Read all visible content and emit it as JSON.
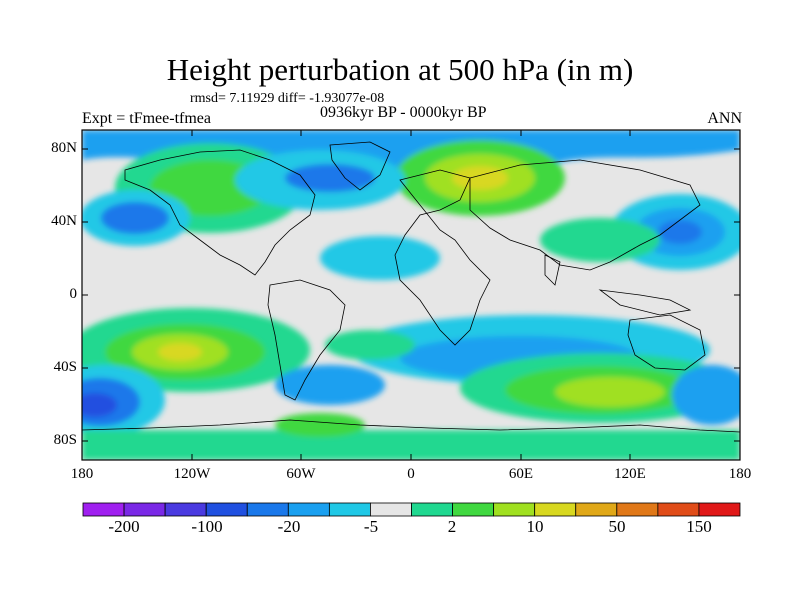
{
  "header": {
    "title": "Height perturbation at 500 hPa (in m)",
    "stats": "rmsd= 7.11929 diff= -1.93077e-08",
    "experiment": "Expt = tFmee-tfmea",
    "period": "0936kyr BP - 0000kyr BP",
    "season": "ANN"
  },
  "map": {
    "lat_ticks": [
      "80N",
      "40N",
      "0",
      "40S",
      "80S"
    ],
    "lon_ticks": [
      "180",
      "120W",
      "60W",
      "0",
      "60E",
      "120E",
      "180"
    ],
    "background_color": "#e6e6e6",
    "coastline_color": "#000000"
  },
  "colorbar": {
    "colors": [
      "#a020f0",
      "#7a28e6",
      "#4a3ae0",
      "#2050e0",
      "#1a78ea",
      "#1aa0f0",
      "#20c8e6",
      "#e6e6e6",
      "#20d890",
      "#40d840",
      "#a0e020",
      "#d8d820",
      "#e0a818",
      "#e07818",
      "#e04c18",
      "#e01818"
    ],
    "labels": [
      "-200",
      "-100",
      "-20",
      "-5",
      "2",
      "10",
      "50",
      "150"
    ]
  }
}
